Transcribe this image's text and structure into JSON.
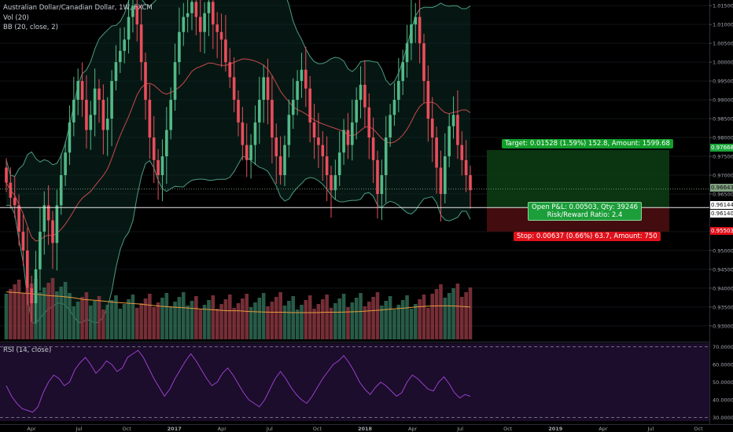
{
  "legend": {
    "symbol": "Australian Dollar/Canadian Dollar, 1W, FXCM",
    "volume": "Vol (20)",
    "bollinger": "BB (20, close, 2)",
    "rsi": "RSI (14, close)"
  },
  "position": {
    "target_label": "Target: 0.01528 (1.59%) 152.8, Amount: 1599.68",
    "stop_label": "Stop: 0.00637 (0.66%) 63.7, Amount: 750",
    "pnl_label": "Open P&L: 0.00503, Qty: 39246",
    "rr_label": "Risk/Reward Ratio: 2.4",
    "entry": 0.9614,
    "target": 0.97668,
    "stop": 0.95503,
    "colors": {
      "profit": "#129e2a",
      "loss": "#e0111b"
    }
  },
  "price_tags": {
    "current": "0.96643",
    "target": "0.97668",
    "crosshair": "0.96144",
    "entry": "0.96140",
    "stop": "0.95503"
  },
  "colors": {
    "bull": "#53b987",
    "bear": "#eb4d5c",
    "volume_ma": "#e59a3d",
    "bb_band": "#4c9a80",
    "bb_mid": "#c7484c",
    "rsi_line": "#9b3fcf",
    "rsi_bg": "#1b0d2b"
  },
  "chart_data": [
    {
      "type": "candlestick",
      "title": "Australian Dollar/Canadian Dollar, 1W, FXCM",
      "price_axis_ticks": [
        "1.01500",
        "1.01000",
        "1.00500",
        "1.00000",
        "0.99500",
        "0.99000",
        "0.98500",
        "0.98000",
        "0.97500",
        "0.97000",
        "0.96500",
        "0.95500",
        "0.95000",
        "0.94500",
        "0.94000",
        "0.93500",
        "0.93000"
      ],
      "price_axis_values": [
        1.015,
        1.01,
        1.005,
        1.0,
        0.995,
        0.99,
        0.985,
        0.98,
        0.975,
        0.97,
        0.965,
        0.955,
        0.95,
        0.945,
        0.94,
        0.935,
        0.93
      ],
      "ylim": [
        0.926,
        1.0165
      ],
      "time_axis_labels": [
        "Apr",
        "Jul",
        "Oct",
        "2017",
        "Apr",
        "Jul",
        "Oct",
        "2018",
        "Apr",
        "Jul",
        "Oct",
        "2019",
        "Apr",
        "Jul",
        "Oct"
      ],
      "close_series": [
        0.968,
        0.964,
        0.962,
        0.955,
        0.95,
        0.94,
        0.936,
        0.945,
        0.955,
        0.962,
        0.958,
        0.952,
        0.962,
        0.97,
        0.976,
        0.984,
        0.99,
        0.995,
        0.99,
        0.982,
        0.986,
        0.993,
        0.99,
        0.982,
        0.985,
        0.995,
        1.0,
        1.003,
        1.006,
        1.012,
        1.015,
        1.01,
        1.0,
        0.99,
        0.98,
        0.974,
        0.97,
        0.975,
        0.982,
        0.99,
        1.0,
        1.008,
        1.012,
        1.013,
        1.016,
        1.012,
        1.008,
        1.013,
        1.016,
        1.01,
        1.008,
        1.006,
        1.0,
        0.996,
        0.99,
        0.984,
        0.978,
        0.974,
        0.978,
        0.984,
        0.99,
        0.996,
        0.99,
        0.98,
        0.975,
        0.97,
        0.978,
        0.986,
        0.99,
        0.995,
        0.998,
        0.993,
        0.984,
        0.98,
        0.978,
        0.975,
        0.97,
        0.966,
        0.97,
        0.976,
        0.982,
        0.978,
        0.984,
        0.99,
        0.994,
        0.988,
        0.98,
        0.974,
        0.965,
        0.97,
        0.98,
        0.986,
        0.99,
        0.995,
        1.0,
        1.005,
        1.01,
        1.012,
        1.005,
        0.995,
        0.985,
        0.98,
        0.972,
        0.965,
        0.975,
        0.983,
        0.986,
        0.978,
        0.974,
        0.97,
        0.966
      ],
      "volume_ma": [
        0.939,
        0.9388,
        0.9386,
        0.9383,
        0.938,
        0.9378,
        0.9375,
        0.937,
        0.9368,
        0.9365,
        0.9362,
        0.936,
        0.9358,
        0.9355,
        0.9352,
        0.935,
        0.9348,
        0.9346,
        0.9344,
        0.9342,
        0.934,
        0.934,
        0.9338,
        0.9337,
        0.9336,
        0.9336,
        0.9335,
        0.9335,
        0.9335,
        0.9336,
        0.9336,
        0.9337,
        0.9338,
        0.934,
        0.9342,
        0.9345,
        0.9347,
        0.935,
        0.9352,
        0.9353,
        0.9353,
        0.9352,
        0.935
      ]
    },
    {
      "type": "line",
      "title": "RSI (14, close)",
      "axis_ticks": [
        "70.0000",
        "60.0000",
        "50.0000",
        "40.0000",
        "30.0000"
      ],
      "axis_values": [
        70,
        60,
        50,
        40,
        30
      ],
      "ylim": [
        28,
        72
      ],
      "values": [
        48,
        42,
        38,
        35,
        34,
        33,
        36,
        44,
        50,
        54,
        52,
        48,
        50,
        57,
        61,
        64,
        60,
        55,
        58,
        62,
        60,
        56,
        58,
        64,
        66,
        68,
        64,
        58,
        52,
        47,
        42,
        46,
        52,
        57,
        62,
        66,
        62,
        57,
        52,
        48,
        50,
        55,
        58,
        54,
        49,
        44,
        40,
        38,
        36,
        40,
        46,
        52,
        56,
        52,
        47,
        43,
        40,
        38,
        42,
        47,
        52,
        56,
        60,
        62,
        65,
        61,
        56,
        50,
        46,
        43,
        47,
        50,
        48,
        45,
        42,
        44,
        50,
        54,
        52,
        49,
        46,
        45,
        50,
        53,
        49,
        44,
        41,
        43,
        42
      ]
    }
  ]
}
